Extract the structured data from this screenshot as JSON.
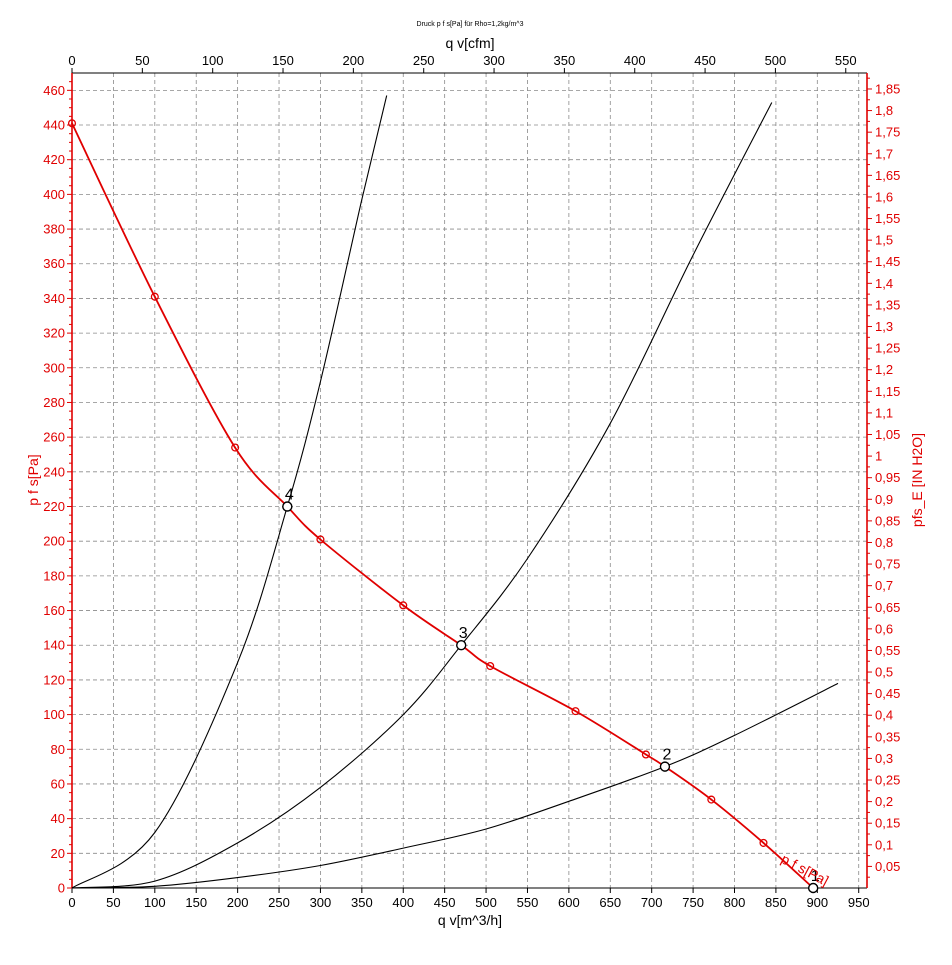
{
  "title": "Druck p f s[Pa] für Rho=1,2kg/m^3",
  "chart_data": {
    "type": "line",
    "title": "Druck p f s[Pa] für Rho=1,2kg/m^3",
    "xlabel": "q v[m^3/h]",
    "x2label": "q v[cfm]",
    "ylabel": "p f s[Pa]",
    "y2label": "pfs_E [IN H2O]",
    "xlim": [
      0,
      960
    ],
    "x2lim": [
      0,
      565.1
    ],
    "ylim": [
      0,
      470
    ],
    "y2lim": [
      0,
      1.887
    ],
    "x_ticks": [
      "0",
      "50",
      "100",
      "150",
      "200",
      "250",
      "300",
      "350",
      "400",
      "450",
      "500",
      "550",
      "600",
      "650",
      "700",
      "750",
      "800",
      "850",
      "900",
      "950"
    ],
    "x2_ticks": [
      "0",
      "50",
      "100",
      "150",
      "200",
      "250",
      "300",
      "350",
      "400",
      "450",
      "500",
      "550"
    ],
    "y_ticks": [
      "0",
      "20",
      "40",
      "60",
      "80",
      "100",
      "120",
      "140",
      "160",
      "180",
      "200",
      "220",
      "240",
      "260",
      "280",
      "300",
      "320",
      "340",
      "360",
      "380",
      "400",
      "420",
      "440",
      "460"
    ],
    "y2_ticks": [
      "0,05",
      "0,1",
      "0,15",
      "0,2",
      "0,25",
      "0,3",
      "0,35",
      "0,4",
      "0,45",
      "0,5",
      "0,55",
      "0,6",
      "0,65",
      "0,7",
      "0,75",
      "0,8",
      "0,85",
      "0,9",
      "0,95",
      "1",
      "1,05",
      "1,1",
      "1,15",
      "1,2",
      "1,25",
      "1,3",
      "1,35",
      "1,4",
      "1,45",
      "1,5",
      "1,55",
      "1,6",
      "1,65",
      "1,7",
      "1,75",
      "1,8",
      "1,85"
    ],
    "grid": true,
    "fan_curve": {
      "name": "p f s[Pa]",
      "color": "#e00000",
      "x": [
        0,
        100,
        197,
        260,
        300,
        400,
        470,
        505,
        608,
        693,
        716,
        772,
        835,
        895
      ],
      "y": [
        441,
        341,
        254,
        220,
        201,
        163,
        140,
        128,
        102,
        77,
        70,
        51,
        26,
        0
      ],
      "markers": [
        [
          0,
          441
        ],
        [
          100,
          341
        ],
        [
          197,
          254
        ],
        [
          300,
          201
        ],
        [
          400,
          163
        ],
        [
          505,
          128
        ],
        [
          608,
          102
        ],
        [
          693,
          77
        ],
        [
          772,
          51
        ],
        [
          835,
          26
        ]
      ]
    },
    "system_curves": [
      {
        "color": "#000000",
        "x": [
          0,
          100,
          200,
          260,
          300,
          350,
          380
        ],
        "y": [
          0,
          32,
          130,
          220,
          292,
          397,
          457
        ]
      },
      {
        "color": "#000000",
        "x": [
          0,
          100,
          200,
          300,
          400,
          470,
          550,
          650,
          750,
          845
        ],
        "y": [
          0,
          4,
          26,
          58,
          100,
          140,
          190,
          268,
          365,
          453
        ]
      },
      {
        "color": "#000000",
        "x": [
          0,
          100,
          200,
          300,
          400,
          500,
          600,
          716,
          800,
          925
        ],
        "y": [
          0,
          1,
          6,
          13,
          23,
          34,
          50,
          70,
          88,
          118
        ]
      }
    ],
    "operating_points": [
      {
        "label": "1",
        "x": 895,
        "y": 0
      },
      {
        "label": "2",
        "x": 716,
        "y": 70
      },
      {
        "label": "3",
        "x": 470,
        "y": 140
      },
      {
        "label": "4",
        "x": 260,
        "y": 220
      }
    ]
  }
}
